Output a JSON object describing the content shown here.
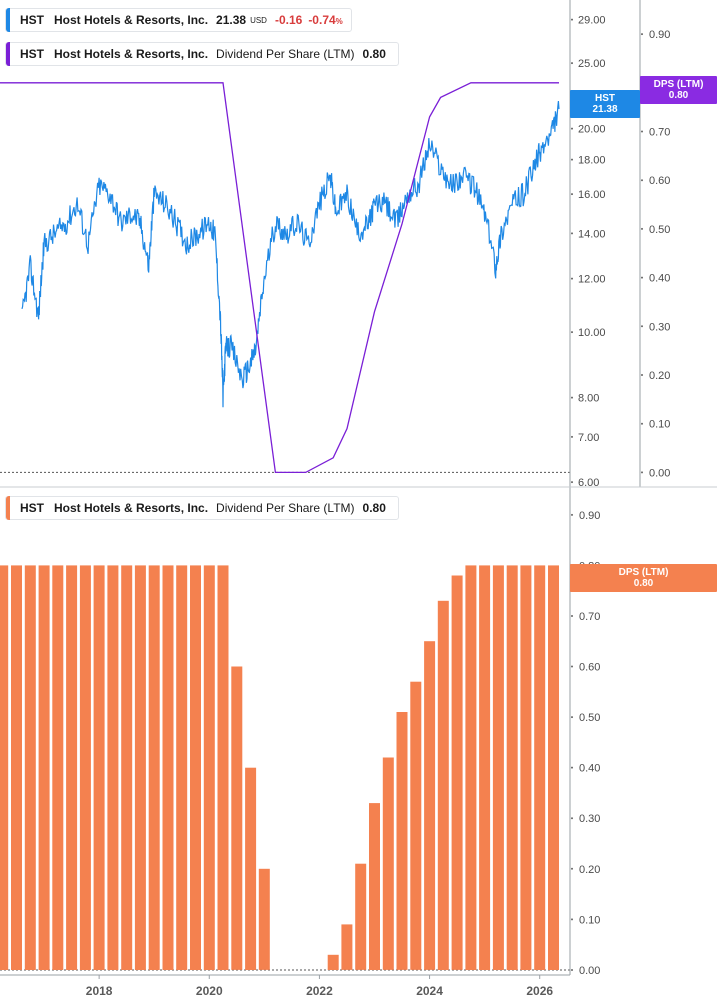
{
  "legends": {
    "top_price": {
      "symbol": "HST",
      "name": "Host Hotels & Resorts, Inc.",
      "value": "21.38",
      "currency": "USD",
      "change": "-0.16",
      "change_pct": "-0.74",
      "pct_sign": "%",
      "color": "#1e88e5"
    },
    "top_dps": {
      "symbol": "HST",
      "name": "Host Hotels & Resorts, Inc.",
      "metric": "Dividend Per Share (LTM)",
      "value": "0.80",
      "color": "#7a1fd6"
    },
    "bottom_dps": {
      "symbol": "HST",
      "name": "Host Hotels & Resorts, Inc.",
      "metric": "Dividend Per Share (LTM)",
      "value": "0.80",
      "color": "#f4814f"
    }
  },
  "badges": {
    "price": {
      "line1": "HST",
      "line2": "21.38",
      "color": "#1e88e5"
    },
    "dps_top": {
      "line1": "DPS (LTM)",
      "line2": "0.80",
      "color": "#8a2be2"
    },
    "dps_bottom": {
      "line1": "DPS (LTM)",
      "line2": "0.80",
      "color": "#f4814f"
    }
  },
  "chart_data": [
    {
      "type": "line",
      "panel": "top",
      "series": [
        {
          "name": "HST",
          "axis": "left-log",
          "color": "#1e88e5",
          "x": [
            2016.6,
            2016.75,
            2016.9,
            2017.0,
            2017.2,
            2017.4,
            2017.6,
            2017.8,
            2018.0,
            2018.2,
            2018.4,
            2018.6,
            2018.75,
            2018.9,
            2019.0,
            2019.2,
            2019.4,
            2019.6,
            2019.8,
            2020.0,
            2020.1,
            2020.2,
            2020.25,
            2020.3,
            2020.4,
            2020.6,
            2020.75,
            2020.85,
            2021.0,
            2021.2,
            2021.4,
            2021.6,
            2021.8,
            2022.0,
            2022.2,
            2022.3,
            2022.5,
            2022.7,
            2022.9,
            2023.0,
            2023.2,
            2023.4,
            2023.6,
            2023.8,
            2024.0,
            2024.2,
            2024.4,
            2024.6,
            2024.8,
            2025.0,
            2025.2,
            2025.3,
            2025.5,
            2025.7,
            2025.9,
            2026.0,
            2026.2,
            2026.35
          ],
          "values": [
            10.5,
            12.5,
            10.5,
            13.5,
            14.0,
            14.5,
            15.5,
            13.5,
            16.5,
            16.0,
            14.5,
            15.0,
            14.5,
            12.5,
            16.0,
            15.5,
            14.5,
            13.5,
            14.0,
            14.5,
            14.0,
            10.5,
            8.0,
            9.5,
            9.5,
            8.5,
            9.0,
            9.5,
            12.0,
            14.5,
            14.0,
            14.5,
            13.5,
            15.5,
            17.0,
            15.0,
            16.0,
            14.0,
            14.5,
            15.5,
            15.5,
            14.5,
            16.0,
            16.5,
            19.0,
            17.5,
            16.5,
            17.0,
            16.5,
            15.0,
            12.5,
            14.0,
            15.5,
            16.0,
            17.5,
            18.5,
            19.5,
            21.38
          ]
        },
        {
          "name": "Dividend Per Share (LTM)",
          "axis": "right",
          "color": "#7a1fd6",
          "x": [
            2016.2,
            2020.25,
            2021.2,
            2021.75,
            2022.25,
            2022.5,
            2023.0,
            2023.5,
            2024.0,
            2024.2,
            2024.75,
            2026.35
          ],
          "values": [
            0.8,
            0.8,
            0.0,
            0.0,
            0.03,
            0.09,
            0.33,
            0.51,
            0.73,
            0.77,
            0.8,
            0.8
          ]
        }
      ],
      "left_ticks": [
        "29.00",
        "25.00",
        "20.00",
        "18.00",
        "16.00",
        "14.00",
        "12.00",
        "10.00",
        "8.00",
        "7.00",
        "6.00"
      ],
      "right_ticks": [
        "0.90",
        "0.70",
        "0.60",
        "0.50",
        "0.40",
        "0.30",
        "0.20",
        "0.10",
        "0.00"
      ],
      "left_scale": "log",
      "left_range": [
        5.9,
        31.0
      ],
      "right_range": [
        -0.03,
        0.97
      ]
    },
    {
      "type": "bar",
      "panel": "bottom",
      "series": [
        {
          "name": "Dividend Per Share (LTM)",
          "color": "#f4814f",
          "x": [
            2016.25,
            2016.5,
            2016.75,
            2017.0,
            2017.25,
            2017.5,
            2017.75,
            2018.0,
            2018.25,
            2018.5,
            2018.75,
            2019.0,
            2019.25,
            2019.5,
            2019.75,
            2020.0,
            2020.25,
            2020.5,
            2020.75,
            2021.0,
            2021.25,
            2021.5,
            2021.75,
            2022.0,
            2022.25,
            2022.5,
            2022.75,
            2023.0,
            2023.25,
            2023.5,
            2023.75,
            2024.0,
            2024.25,
            2024.5,
            2024.75,
            2025.0,
            2025.25,
            2025.5,
            2025.75,
            2026.0,
            2026.25
          ],
          "values": [
            0.8,
            0.8,
            0.8,
            0.8,
            0.8,
            0.8,
            0.8,
            0.8,
            0.8,
            0.8,
            0.8,
            0.8,
            0.8,
            0.8,
            0.8,
            0.8,
            0.8,
            0.6,
            0.4,
            0.2,
            0.0,
            0.0,
            0.0,
            0.0,
            0.03,
            0.09,
            0.21,
            0.33,
            0.42,
            0.51,
            0.57,
            0.65,
            0.73,
            0.78,
            0.8,
            0.8,
            0.8,
            0.8,
            0.8,
            0.8,
            0.8
          ]
        }
      ],
      "right_ticks": [
        "0.90",
        "0.80",
        "0.70",
        "0.60",
        "0.50",
        "0.40",
        "0.30",
        "0.20",
        "0.10",
        "0.00"
      ],
      "right_range": [
        -0.01,
        0.955
      ],
      "x_ticks": [
        "2018",
        "2020",
        "2022",
        "2024",
        "2026"
      ],
      "x_range": [
        2016.2,
        2026.55
      ]
    }
  ]
}
